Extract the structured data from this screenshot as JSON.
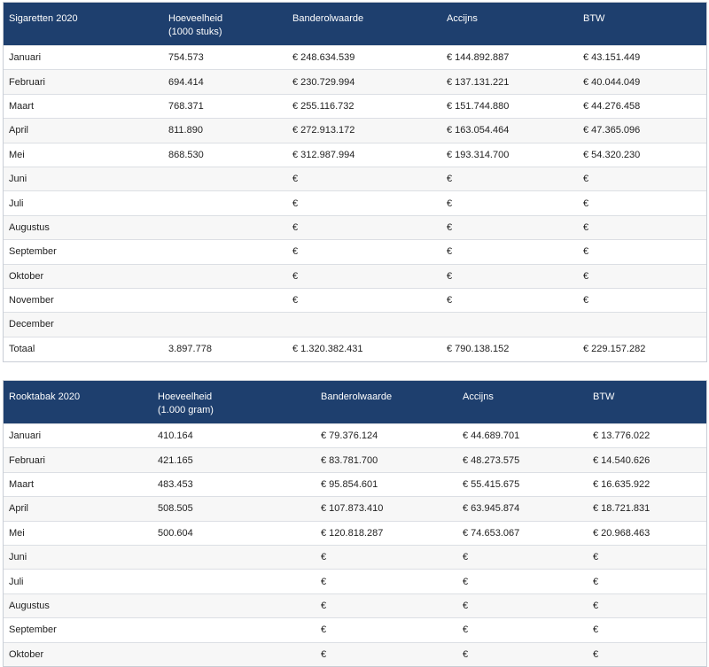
{
  "tables": [
    {
      "header": [
        "Sigaretten 2020",
        "Hoeveelheid\n(1000 stuks)",
        "Banderolwaarde",
        "Accijns",
        "BTW"
      ],
      "rows": [
        [
          "Januari",
          "754.573",
          "€ 248.634.539",
          "€ 144.892.887",
          "€ 43.151.449"
        ],
        [
          "Februari",
          "694.414",
          "€ 230.729.994",
          "€ 137.131.221",
          "€ 40.044.049"
        ],
        [
          "Maart",
          "768.371",
          "€ 255.116.732",
          "€ 151.744.880",
          "€ 44.276.458"
        ],
        [
          "April",
          "811.890",
          "€ 272.913.172",
          "€ 163.054.464",
          "€ 47.365.096"
        ],
        [
          "Mei",
          "868.530",
          "€ 312.987.994",
          "€ 193.314.700",
          "€ 54.320.230"
        ],
        [
          "Juni",
          null,
          "€",
          "€",
          "€"
        ],
        [
          "Juli",
          null,
          "€",
          "€",
          "€"
        ],
        [
          "Augustus",
          null,
          "€",
          "€",
          "€"
        ],
        [
          "September",
          null,
          "€",
          "€",
          "€"
        ],
        [
          "Oktober",
          null,
          "€",
          "€",
          "€"
        ],
        [
          "November",
          null,
          "€",
          "€",
          "€"
        ],
        [
          "December",
          null,
          null,
          null,
          null
        ],
        [
          "Totaal",
          "3.897.778",
          "€ 1.320.382.431",
          "€ 790.138.152",
          "€ 229.157.282"
        ]
      ]
    },
    {
      "header": [
        "Rooktabak 2020",
        "Hoeveelheid\n(1.000 gram)",
        "Banderolwaarde",
        "Accijns",
        "BTW"
      ],
      "rows": [
        [
          "Januari",
          "410.164",
          "€ 79.376.124",
          "€ 44.689.701",
          "€ 13.776.022"
        ],
        [
          "Februari",
          "421.165",
          "€ 83.781.700",
          "€ 48.273.575",
          "€ 14.540.626"
        ],
        [
          "Maart",
          "483.453",
          "€ 95.854.601",
          "€ 55.415.675",
          "€ 16.635.922"
        ],
        [
          "April",
          "508.505",
          "€ 107.873.410",
          "€ 63.945.874",
          "€ 18.721.831"
        ],
        [
          "Mei",
          "500.604",
          "€ 120.818.287",
          "€ 74.653.067",
          "€ 20.968.463"
        ],
        [
          "Juni",
          null,
          "€",
          "€",
          "€"
        ],
        [
          "Juli",
          null,
          "€",
          "€",
          "€"
        ],
        [
          "Augustus",
          null,
          "€",
          "€",
          "€"
        ],
        [
          "September",
          null,
          "€",
          "€",
          "€"
        ],
        [
          "Oktober",
          null,
          "€",
          "€",
          "€"
        ]
      ]
    }
  ]
}
